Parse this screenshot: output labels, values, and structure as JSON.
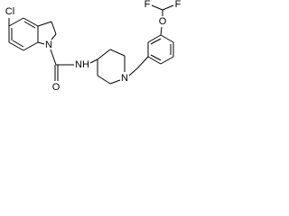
{
  "atoms": [
    "Cl",
    "N",
    "O",
    "NH",
    "N",
    "O",
    "F",
    "F"
  ]
}
